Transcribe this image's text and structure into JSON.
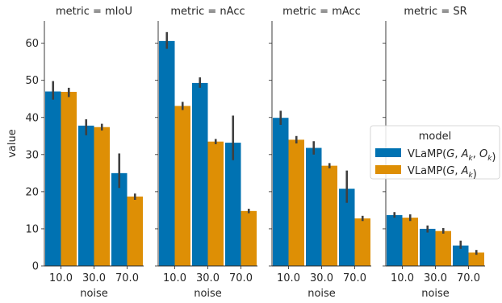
{
  "chart_data": {
    "type": "bar",
    "layout": "facet-grid",
    "shared_y": true,
    "ylabel": "value",
    "ylim": [
      0,
      66
    ],
    "yticks": [
      0,
      10,
      20,
      30,
      40,
      50,
      60
    ],
    "xlabel": "noise",
    "categories": [
      "10.0",
      "30.0",
      "70.0"
    ],
    "legend": {
      "title": "model",
      "placement": "right",
      "entries": [
        {
          "name": "VLaMP(G, A_k, O_k)",
          "color": "#0072b2"
        },
        {
          "name": "VLaMP(G, A_k)",
          "color": "#de8f05"
        }
      ]
    },
    "facets": [
      {
        "title": "metric = mIoU",
        "series": [
          {
            "name": "VLaMP(G, A_k, O_k)",
            "values": [
              47.0,
              37.8,
              25.0
            ],
            "ci": [
              [
                44.8,
                49.8
              ],
              [
                35.2,
                39.5
              ],
              [
                21.0,
                30.3
              ]
            ]
          },
          {
            "name": "VLaMP(G, A_k)",
            "values": [
              46.9,
              37.4,
              18.7
            ],
            "ci": [
              [
                45.5,
                48.0
              ],
              [
                36.5,
                38.3
              ],
              [
                17.8,
                19.5
              ]
            ]
          }
        ]
      },
      {
        "title": "metric = nAcc",
        "series": [
          {
            "name": "VLaMP(G, A_k, O_k)",
            "values": [
              60.6,
              49.3,
              33.2
            ],
            "ci": [
              [
                58.5,
                63.0
              ],
              [
                48.0,
                50.8
              ],
              [
                28.5,
                40.5
              ]
            ]
          },
          {
            "name": "VLaMP(G, A_k)",
            "values": [
              43.1,
              33.5,
              14.8
            ],
            "ci": [
              [
                42.0,
                44.2
              ],
              [
                32.8,
                34.2
              ],
              [
                14.2,
                15.4
              ]
            ]
          }
        ]
      },
      {
        "title": "metric = mAcc",
        "series": [
          {
            "name": "VLaMP(G, A_k, O_k)",
            "values": [
              39.9,
              31.8,
              20.8
            ],
            "ci": [
              [
                38.0,
                41.8
              ],
              [
                30.0,
                33.6
              ],
              [
                17.0,
                25.7
              ]
            ]
          },
          {
            "name": "VLaMP(G, A_k)",
            "values": [
              34.0,
              27.0,
              12.8
            ],
            "ci": [
              [
                33.0,
                35.0
              ],
              [
                26.3,
                27.7
              ],
              [
                12.1,
                13.5
              ]
            ]
          }
        ]
      },
      {
        "title": "metric = SR",
        "series": [
          {
            "name": "VLaMP(G, A_k, O_k)",
            "values": [
              13.7,
              10.0,
              5.5
            ],
            "ci": [
              [
                13.0,
                14.5
              ],
              [
                9.0,
                10.9
              ],
              [
                4.6,
                6.8
              ]
            ]
          },
          {
            "name": "VLaMP(G, A_k)",
            "values": [
              13.0,
              9.4,
              3.6
            ],
            "ci": [
              [
                12.1,
                13.9
              ],
              [
                8.7,
                10.2
              ],
              [
                3.0,
                4.3
              ]
            ]
          }
        ]
      }
    ]
  }
}
